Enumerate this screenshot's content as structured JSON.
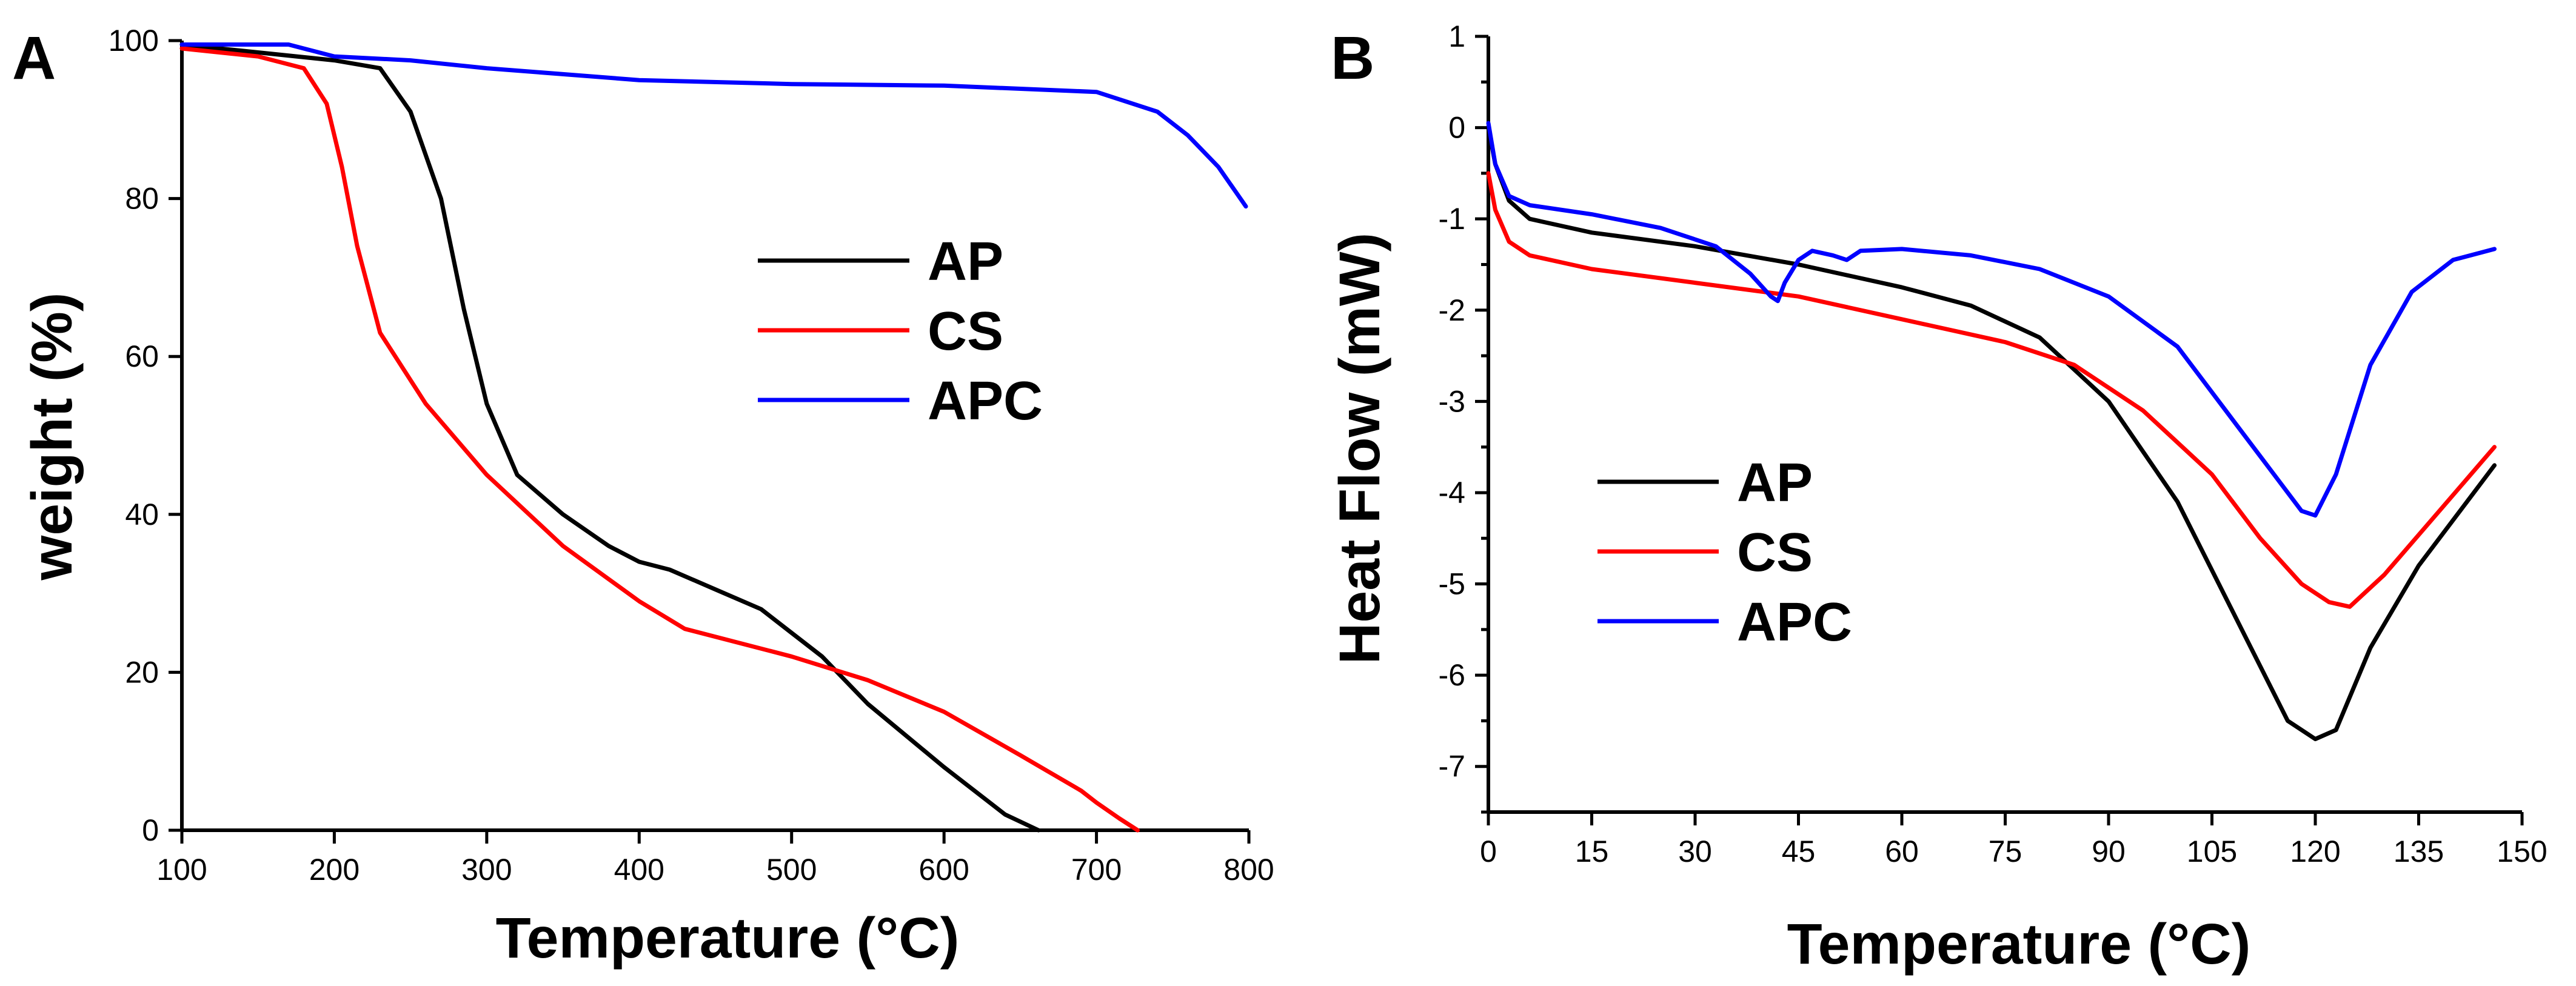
{
  "chart_data": [
    {
      "panel": "A",
      "type": "line",
      "title": "",
      "xlabel": "Temperature (°C)",
      "ylabel": "weight (%)",
      "xlim": [
        100,
        800
      ],
      "ylim": [
        0,
        100
      ],
      "xticks": [
        100,
        200,
        300,
        400,
        500,
        600,
        700,
        800
      ],
      "yticks": [
        0,
        20,
        40,
        60,
        80,
        100
      ],
      "legend_position": "center-right",
      "series": [
        {
          "name": "AP",
          "color": "#000000",
          "points": [
            [
              100,
              99.5
            ],
            [
              150,
              98.5
            ],
            [
              200,
              97.5
            ],
            [
              230,
              96.5
            ],
            [
              250,
              91
            ],
            [
              270,
              80
            ],
            [
              285,
              66
            ],
            [
              300,
              54
            ],
            [
              320,
              45
            ],
            [
              350,
              40
            ],
            [
              380,
              36
            ],
            [
              400,
              34
            ],
            [
              420,
              33
            ],
            [
              450,
              30.5
            ],
            [
              480,
              28
            ],
            [
              500,
              25
            ],
            [
              520,
              22
            ],
            [
              550,
              16
            ],
            [
              600,
              8
            ],
            [
              640,
              2
            ],
            [
              662,
              0
            ]
          ]
        },
        {
          "name": "CS",
          "color": "#ff0000",
          "points": [
            [
              100,
              99
            ],
            [
              150,
              98
            ],
            [
              180,
              96.5
            ],
            [
              195,
              92
            ],
            [
              205,
              84
            ],
            [
              215,
              74
            ],
            [
              230,
              63
            ],
            [
              260,
              54
            ],
            [
              300,
              45
            ],
            [
              350,
              36
            ],
            [
              400,
              29
            ],
            [
              430,
              25.5
            ],
            [
              500,
              22
            ],
            [
              550,
              19
            ],
            [
              600,
              15
            ],
            [
              650,
              9.5
            ],
            [
              690,
              5
            ],
            [
              700,
              3.5
            ],
            [
              715,
              1.5
            ],
            [
              727,
              0
            ]
          ]
        },
        {
          "name": "APC",
          "color": "#0000ff",
          "points": [
            [
              100,
              99.5
            ],
            [
              170,
              99.5
            ],
            [
              200,
              98
            ],
            [
              250,
              97.5
            ],
            [
              300,
              96.5
            ],
            [
              400,
              95
            ],
            [
              500,
              94.5
            ],
            [
              600,
              94.3
            ],
            [
              700,
              93.5
            ],
            [
              740,
              91
            ],
            [
              760,
              88
            ],
            [
              780,
              84
            ],
            [
              798,
              79
            ]
          ]
        }
      ]
    },
    {
      "panel": "B",
      "type": "line",
      "title": "",
      "xlabel": "Temperature (°C)",
      "ylabel": "Heat Flow (mW)",
      "xlim": [
        0,
        150
      ],
      "ylim": [
        -7.5,
        1
      ],
      "xticks": [
        0,
        15,
        30,
        45,
        60,
        75,
        90,
        105,
        120,
        135,
        150
      ],
      "yticks": [
        1,
        0,
        -1,
        -2,
        -3,
        -4,
        -5,
        -6,
        -7
      ],
      "legend_position": "center-left",
      "series": [
        {
          "name": "AP",
          "color": "#000000",
          "points": [
            [
              0,
              0
            ],
            [
              1,
              -0.4
            ],
            [
              3,
              -0.8
            ],
            [
              6,
              -1.0
            ],
            [
              15,
              -1.15
            ],
            [
              30,
              -1.3
            ],
            [
              45,
              -1.5
            ],
            [
              60,
              -1.75
            ],
            [
              70,
              -1.95
            ],
            [
              80,
              -2.3
            ],
            [
              90,
              -3.0
            ],
            [
              100,
              -4.1
            ],
            [
              110,
              -5.6
            ],
            [
              116,
              -6.5
            ],
            [
              120,
              -6.7
            ],
            [
              123,
              -6.6
            ],
            [
              128,
              -5.7
            ],
            [
              135,
              -4.8
            ],
            [
              142,
              -4.1
            ],
            [
              146,
              -3.7
            ]
          ]
        },
        {
          "name": "CS",
          "color": "#ff0000",
          "points": [
            [
              0,
              -0.5
            ],
            [
              1,
              -0.9
            ],
            [
              3,
              -1.25
            ],
            [
              6,
              -1.4
            ],
            [
              15,
              -1.55
            ],
            [
              30,
              -1.7
            ],
            [
              45,
              -1.85
            ],
            [
              60,
              -2.1
            ],
            [
              75,
              -2.35
            ],
            [
              85,
              -2.6
            ],
            [
              95,
              -3.1
            ],
            [
              105,
              -3.8
            ],
            [
              112,
              -4.5
            ],
            [
              118,
              -5.0
            ],
            [
              122,
              -5.2
            ],
            [
              125,
              -5.25
            ],
            [
              130,
              -4.9
            ],
            [
              138,
              -4.2
            ],
            [
              146,
              -3.5
            ]
          ]
        },
        {
          "name": "APC",
          "color": "#0000ff",
          "points": [
            [
              0,
              0.05
            ],
            [
              1,
              -0.4
            ],
            [
              3,
              -0.75
            ],
            [
              6,
              -0.85
            ],
            [
              15,
              -0.95
            ],
            [
              25,
              -1.1
            ],
            [
              33,
              -1.3
            ],
            [
              38,
              -1.6
            ],
            [
              41,
              -1.85
            ],
            [
              42,
              -1.9
            ],
            [
              43,
              -1.7
            ],
            [
              45,
              -1.45
            ],
            [
              47,
              -1.35
            ],
            [
              50,
              -1.4
            ],
            [
              52,
              -1.45
            ],
            [
              54,
              -1.35
            ],
            [
              60,
              -1.33
            ],
            [
              70,
              -1.4
            ],
            [
              80,
              -1.55
            ],
            [
              90,
              -1.85
            ],
            [
              100,
              -2.4
            ],
            [
              108,
              -3.2
            ],
            [
              114,
              -3.8
            ],
            [
              118,
              -4.2
            ],
            [
              120,
              -4.25
            ],
            [
              123,
              -3.8
            ],
            [
              128,
              -2.6
            ],
            [
              134,
              -1.8
            ],
            [
              140,
              -1.45
            ],
            [
              146,
              -1.33
            ]
          ]
        }
      ]
    }
  ]
}
